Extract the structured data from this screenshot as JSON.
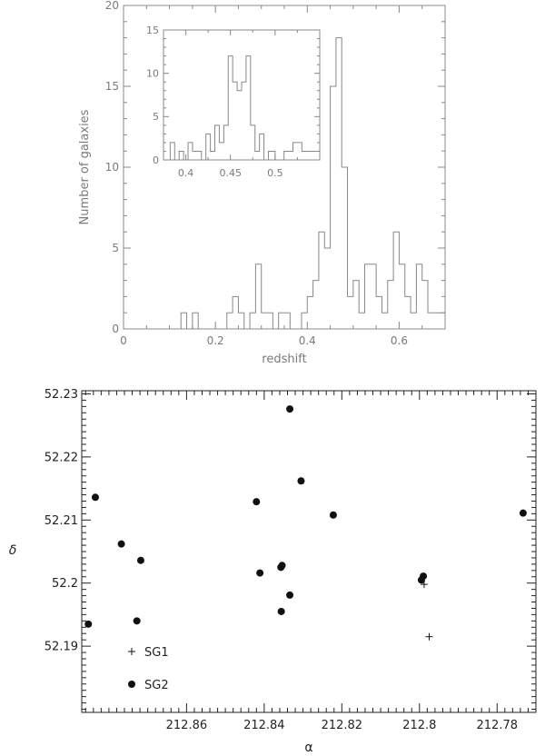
{
  "chart_data": [
    {
      "type": "bar",
      "subtype": "step-histogram",
      "xlabel": "redshift",
      "ylabel": "Number of galaxies",
      "xlim": [
        0,
        0.7
      ],
      "ylim": [
        0,
        20
      ],
      "xticks": [
        0,
        0.2,
        0.4,
        0.6
      ],
      "xtick_labels": [
        "0",
        "0.2",
        "0.4",
        "0.6"
      ],
      "yticks": [
        0,
        5,
        10,
        15,
        20
      ],
      "ytick_labels": [
        "0",
        "5",
        "10",
        "15",
        "20"
      ],
      "grid": false,
      "bin_edges": [
        0.125,
        0.1375,
        0.15,
        0.1625,
        0.225,
        0.2375,
        0.25,
        0.2625,
        0.275,
        0.2875,
        0.3,
        0.325,
        0.3375,
        0.35,
        0.3625,
        0.3875,
        0.4,
        0.4125,
        0.425,
        0.4375,
        0.45,
        0.4625,
        0.475,
        0.4875,
        0.5,
        0.5125,
        0.525,
        0.5375,
        0.55,
        0.5625,
        0.575,
        0.5875,
        0.6,
        0.6125,
        0.625,
        0.6375,
        0.65,
        0.6625,
        0.675,
        0.7
      ],
      "counts": [
        1,
        0,
        1,
        0,
        1,
        2,
        1,
        0,
        1,
        4,
        1,
        0,
        1,
        1,
        0,
        1,
        2,
        3,
        6,
        5,
        15,
        18,
        10,
        2,
        3,
        1,
        4,
        4,
        2,
        1,
        3,
        6,
        4,
        2,
        1,
        4,
        3,
        1,
        1
      ]
    },
    {
      "type": "bar",
      "subtype": "step-histogram-inset",
      "xlabel": "",
      "ylabel": "",
      "xlim": [
        0.375,
        0.55
      ],
      "ylim": [
        0,
        15
      ],
      "xticks": [
        0.4,
        0.45,
        0.5
      ],
      "xtick_labels": [
        "0.4",
        "0.45",
        "0.5"
      ],
      "yticks": [
        0,
        5,
        10,
        15
      ],
      "ytick_labels": [
        "0",
        "5",
        "10",
        "15"
      ],
      "grid": false,
      "bin_edges": [
        0.375,
        0.3825,
        0.3875,
        0.3925,
        0.3975,
        0.4025,
        0.4075,
        0.4125,
        0.4175,
        0.4225,
        0.4275,
        0.4325,
        0.4375,
        0.4425,
        0.4475,
        0.4525,
        0.4575,
        0.4625,
        0.4675,
        0.4725,
        0.4775,
        0.4825,
        0.4875,
        0.4925,
        0.5,
        0.51,
        0.52,
        0.53,
        0.55
      ],
      "counts": [
        0,
        2,
        0,
        1,
        0,
        2,
        1,
        1,
        0,
        3,
        1,
        4,
        2,
        4,
        12,
        9,
        8,
        9,
        12,
        4,
        1,
        3,
        0,
        1,
        0,
        1,
        2,
        1
      ]
    },
    {
      "type": "scatter",
      "xlabel": "α",
      "ylabel": "δ",
      "xlim": [
        212.887,
        212.77
      ],
      "ylim": [
        52.1795,
        52.2305
      ],
      "x_reversed": true,
      "xticks": [
        212.86,
        212.84,
        212.82,
        212.8,
        212.78
      ],
      "xtick_labels": [
        "212.86",
        "212.84",
        "212.82",
        "212.8",
        "212.78"
      ],
      "yticks": [
        52.19,
        52.2,
        52.21,
        52.22,
        52.23
      ],
      "ytick_labels": [
        "52.19",
        "52.2",
        "52.21",
        "52.22",
        "52.23"
      ],
      "grid": false,
      "legend_position": "bottom-left",
      "series": [
        {
          "name": "SG1",
          "marker": "plus",
          "points": [
            [
              212.7988,
              52.1998
            ],
            [
              212.7975,
              52.1915
            ]
          ]
        },
        {
          "name": "SG2",
          "marker": "filled-circle",
          "points": [
            [
              212.8835,
              52.2136
            ],
            [
              212.8853,
              52.1935
            ],
            [
              212.8768,
              52.2062
            ],
            [
              212.8718,
              52.2036
            ],
            [
              212.8728,
              52.194
            ],
            [
              212.842,
              52.2129
            ],
            [
              212.8411,
              52.2016
            ],
            [
              212.8357,
              52.2025
            ],
            [
              212.8354,
              52.2028
            ],
            [
              212.8356,
              52.1955
            ],
            [
              212.8334,
              52.2276
            ],
            [
              212.8334,
              52.1981
            ],
            [
              212.8305,
              52.2162
            ],
            [
              212.8222,
              52.2108
            ],
            [
              212.7995,
              52.2005
            ],
            [
              212.799,
              52.2011
            ],
            [
              212.7733,
              52.2111
            ]
          ]
        }
      ]
    }
  ]
}
